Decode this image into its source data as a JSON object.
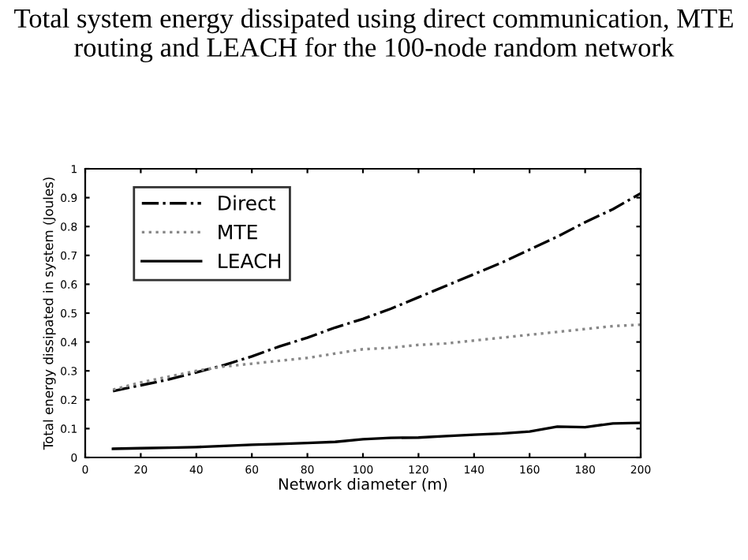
{
  "chart_data": {
    "type": "line",
    "title": "Total system energy dissipated using direct communication, MTE routing and LEACH for the 100-node random network",
    "xlabel": "Network diameter (m)",
    "ylabel": "Total energy dissipated in system (Joules)",
    "x": [
      10,
      20,
      30,
      40,
      50,
      60,
      70,
      80,
      90,
      100,
      110,
      120,
      130,
      140,
      150,
      160,
      170,
      180,
      190,
      200
    ],
    "series": [
      {
        "name": "Direct",
        "color": "#000000",
        "line_style": "dashdot",
        "values": [
          0.23,
          0.25,
          0.27,
          0.295,
          0.32,
          0.35,
          0.385,
          0.415,
          0.45,
          0.48,
          0.515,
          0.555,
          0.595,
          0.635,
          0.675,
          0.72,
          0.765,
          0.815,
          0.86,
          0.915
        ]
      },
      {
        "name": "MTE",
        "color": "#888888",
        "line_style": "dotted",
        "values": [
          0.235,
          0.26,
          0.28,
          0.3,
          0.315,
          0.325,
          0.335,
          0.345,
          0.36,
          0.375,
          0.38,
          0.39,
          0.395,
          0.405,
          0.415,
          0.425,
          0.435,
          0.445,
          0.455,
          0.46
        ]
      },
      {
        "name": "LEACH",
        "color": "#000000",
        "line_style": "solid",
        "values": [
          0.03,
          0.032,
          0.034,
          0.036,
          0.04,
          0.044,
          0.047,
          0.05,
          0.054,
          0.063,
          0.068,
          0.069,
          0.074,
          0.079,
          0.083,
          0.09,
          0.107,
          0.105,
          0.118,
          0.12
        ]
      }
    ],
    "xlim": [
      0,
      200
    ],
    "xticks": [
      0,
      20,
      40,
      60,
      80,
      100,
      120,
      140,
      160,
      180,
      200
    ],
    "ylim": [
      0,
      1
    ],
    "yticks": [
      0,
      0.1,
      0.2,
      0.3,
      0.4,
      0.5,
      0.6,
      0.7,
      0.8,
      0.9,
      1
    ],
    "grid": false,
    "legend": "top left",
    "marker": "none"
  }
}
